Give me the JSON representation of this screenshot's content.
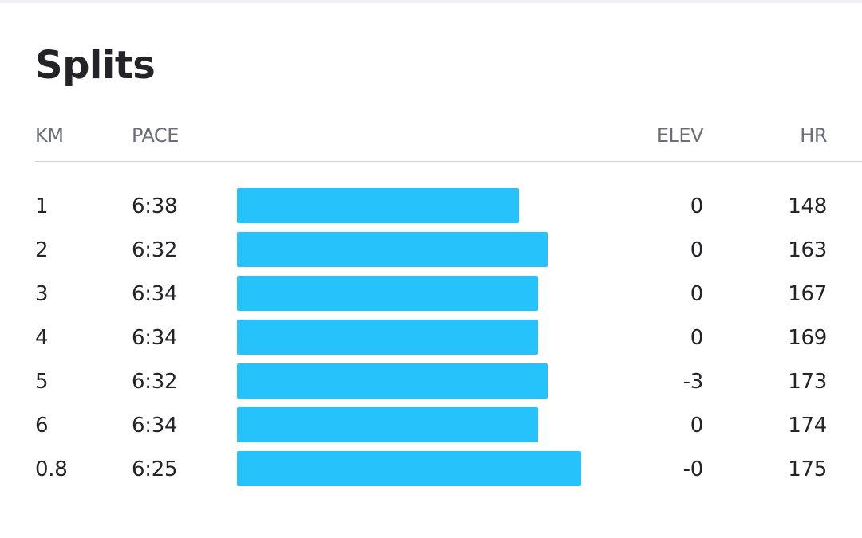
{
  "title": "Splits",
  "table": {
    "columns": [
      "KM",
      "PACE",
      "ELEV",
      "HR"
    ],
    "rows": [
      [
        "1",
        "6:38",
        "0",
        "148"
      ],
      [
        "2",
        "6:32",
        "0",
        "163"
      ],
      [
        "3",
        "6:34",
        "0",
        "167"
      ],
      [
        "4",
        "6:34",
        "0",
        "169"
      ],
      [
        "5",
        "6:32",
        "-3",
        "173"
      ],
      [
        "6",
        "6:34",
        "0",
        "174"
      ],
      [
        "0.8",
        "6:25",
        "-0",
        "175"
      ]
    ]
  }
}
